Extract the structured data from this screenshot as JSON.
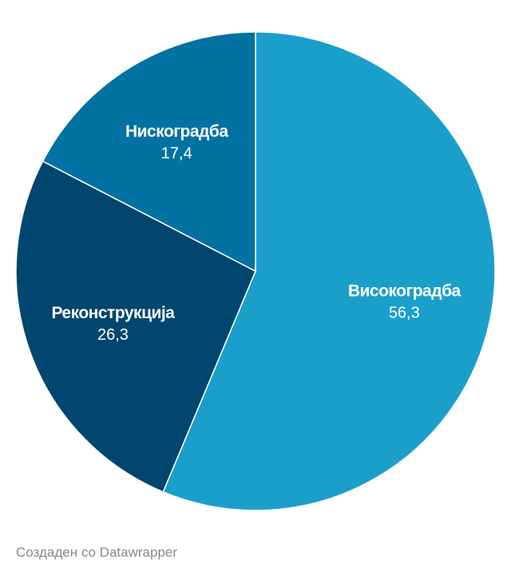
{
  "chart_data": {
    "type": "pie",
    "categories": [
      "Високоградба",
      "Реконструкција",
      "Нискоградба"
    ],
    "values": [
      56.3,
      26.3,
      17.4
    ],
    "value_labels": [
      "56,3",
      "26,3",
      "17,4"
    ],
    "colors": [
      "#1a9fcb",
      "#00466e",
      "#0272a2"
    ],
    "credit": "Создаден со Datawrapper"
  }
}
